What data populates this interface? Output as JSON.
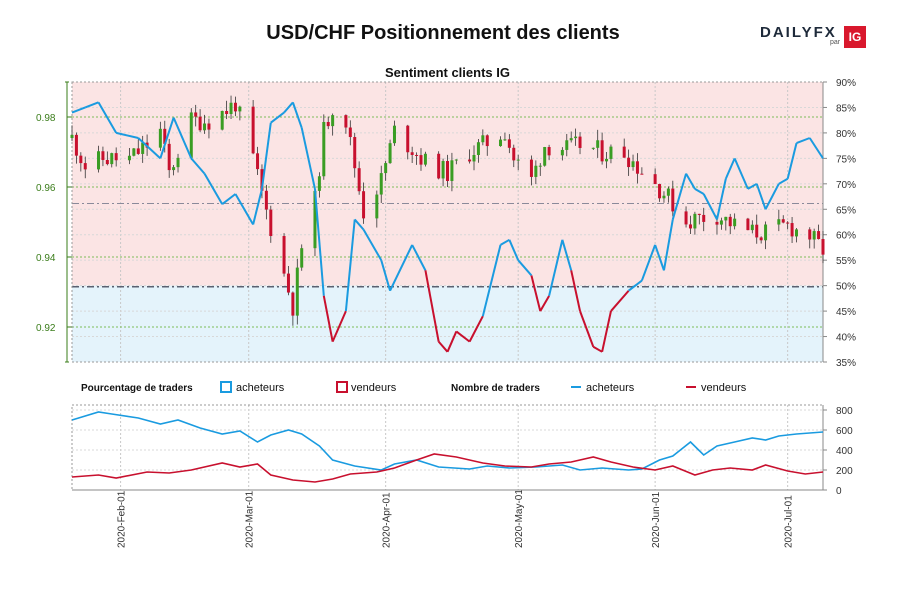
{
  "header": {
    "title": "USD/CHF Positionnement des clients",
    "logo_text": "DAILY",
    "logo_fx": "FX",
    "logo_par": "par",
    "logo_ig": "IG"
  },
  "legend": {
    "pct_label": "Pourcentage de traders",
    "pct_buy": "acheteurs",
    "pct_sell": "vendeurs",
    "count_label": "Nombre de traders",
    "count_buy": "acheteurs",
    "count_sell": "vendeurs"
  },
  "colors": {
    "buyer": "#1a9be0",
    "seller": "#c8102e",
    "up": "#3a9d23",
    "down": "#c8102e",
    "buy_fill": "#e4f3fb",
    "sell_fill": "#fbe4e4",
    "axis_green": "#3a7d1a"
  },
  "chart_data": [
    {
      "type": "candlestick+line",
      "title": "Sentiment clients IG",
      "left_axis": {
        "ticks": [
          "0.92",
          "0.94",
          "0.96",
          "0.98"
        ],
        "values": [
          0.92,
          0.94,
          0.96,
          0.98
        ],
        "range": [
          0.91,
          0.99
        ]
      },
      "right_axis": {
        "ticks": [
          "35%",
          "40%",
          "45%",
          "50%",
          "55%",
          "60%",
          "65%",
          "70%",
          "75%",
          "80%",
          "85%",
          "90%"
        ],
        "range": [
          35,
          90
        ]
      },
      "reference_lines": {
        "price_levels": [
          0.9553,
          0.9315
        ]
      },
      "date_range": [
        "2020-01-21",
        "2020-07-09"
      ],
      "price_path": [
        [
          "2020-01-21",
          0.974
        ],
        [
          "2020-01-24",
          0.966
        ],
        [
          "2020-01-28",
          0.968
        ],
        [
          "2020-02-03",
          0.968
        ],
        [
          "2020-02-07",
          0.972
        ],
        [
          "2020-02-10",
          0.976
        ],
        [
          "2020-02-12",
          0.964
        ],
        [
          "2020-02-17",
          0.979
        ],
        [
          "2020-02-21",
          0.979
        ],
        [
          "2020-02-25",
          0.982
        ],
        [
          "2020-02-27",
          0.984
        ],
        [
          "2020-03-02",
          0.968
        ],
        [
          "2020-03-05",
          0.953
        ],
        [
          "2020-03-09",
          0.935
        ],
        [
          "2020-03-11",
          0.926
        ],
        [
          "2020-03-13",
          0.943
        ],
        [
          "2020-03-16",
          0.956
        ],
        [
          "2020-03-18",
          0.976
        ],
        [
          "2020-03-20",
          0.983
        ],
        [
          "2020-03-23",
          0.979
        ],
        [
          "2020-03-25",
          0.966
        ],
        [
          "2020-03-27",
          0.953
        ],
        [
          "2020-03-31",
          0.962
        ],
        [
          "2020-04-03",
          0.976
        ],
        [
          "2020-04-07",
          0.971
        ],
        [
          "2020-04-10",
          0.967
        ],
        [
          "2020-04-15",
          0.964
        ],
        [
          "2020-04-20",
          0.97
        ],
        [
          "2020-04-23",
          0.972
        ],
        [
          "2020-04-28",
          0.976
        ],
        [
          "2020-04-30",
          0.968
        ],
        [
          "2020-05-04",
          0.962
        ],
        [
          "2020-05-07",
          0.972
        ],
        [
          "2020-05-12",
          0.971
        ],
        [
          "2020-05-15",
          0.972
        ],
        [
          "2020-05-20",
          0.97
        ],
        [
          "2020-05-25",
          0.97
        ],
        [
          "2020-05-28",
          0.966
        ],
        [
          "2020-06-01",
          0.961
        ],
        [
          "2020-06-04",
          0.957
        ],
        [
          "2020-06-08",
          0.95
        ],
        [
          "2020-06-10",
          0.951
        ],
        [
          "2020-06-15",
          0.952
        ],
        [
          "2020-06-19",
          0.949
        ],
        [
          "2020-06-23",
          0.947
        ],
        [
          "2020-06-26",
          0.947
        ],
        [
          "2020-07-01",
          0.949
        ],
        [
          "2020-07-06",
          0.946
        ],
        [
          "2020-07-09",
          0.942
        ]
      ],
      "net_long_pct_path": [
        [
          "2020-01-21",
          84
        ],
        [
          "2020-01-24",
          85
        ],
        [
          "2020-01-27",
          86
        ],
        [
          "2020-01-31",
          80
        ],
        [
          "2020-02-05",
          79
        ],
        [
          "2020-02-10",
          75
        ],
        [
          "2020-02-13",
          83
        ],
        [
          "2020-02-17",
          75
        ],
        [
          "2020-02-20",
          72
        ],
        [
          "2020-02-24",
          66
        ],
        [
          "2020-02-27",
          68
        ],
        [
          "2020-03-02",
          62
        ],
        [
          "2020-03-04",
          69
        ],
        [
          "2020-03-06",
          82
        ],
        [
          "2020-03-09",
          84
        ],
        [
          "2020-03-11",
          86
        ],
        [
          "2020-03-13",
          81
        ],
        [
          "2020-03-16",
          69
        ],
        [
          "2020-03-18",
          48
        ],
        [
          "2020-03-20",
          39
        ],
        [
          "2020-03-23",
          45
        ],
        [
          "2020-03-25",
          63
        ],
        [
          "2020-03-27",
          61
        ],
        [
          "2020-03-31",
          55
        ],
        [
          "2020-04-02",
          49
        ],
        [
          "2020-04-07",
          58
        ],
        [
          "2020-04-10",
          53
        ],
        [
          "2020-04-13",
          39
        ],
        [
          "2020-04-15",
          37
        ],
        [
          "2020-04-17",
          41
        ],
        [
          "2020-04-20",
          39
        ],
        [
          "2020-04-23",
          44
        ],
        [
          "2020-04-27",
          58
        ],
        [
          "2020-04-29",
          59
        ],
        [
          "2020-05-01",
          55
        ],
        [
          "2020-05-04",
          52
        ],
        [
          "2020-05-06",
          45
        ],
        [
          "2020-05-08",
          48
        ],
        [
          "2020-05-11",
          59
        ],
        [
          "2020-05-13",
          53
        ],
        [
          "2020-05-15",
          45
        ],
        [
          "2020-05-18",
          38
        ],
        [
          "2020-05-20",
          37
        ],
        [
          "2020-05-22",
          45
        ],
        [
          "2020-05-26",
          49
        ],
        [
          "2020-05-29",
          51
        ],
        [
          "2020-06-01",
          58
        ],
        [
          "2020-06-03",
          53
        ],
        [
          "2020-06-05",
          63
        ],
        [
          "2020-06-08",
          72
        ],
        [
          "2020-06-10",
          69
        ],
        [
          "2020-06-12",
          68
        ],
        [
          "2020-06-15",
          63
        ],
        [
          "2020-06-17",
          71
        ],
        [
          "2020-06-19",
          75
        ],
        [
          "2020-06-22",
          69
        ],
        [
          "2020-06-24",
          70
        ],
        [
          "2020-06-26",
          65
        ],
        [
          "2020-06-29",
          70
        ],
        [
          "2020-07-01",
          71
        ],
        [
          "2020-07-03",
          78
        ],
        [
          "2020-07-06",
          79
        ],
        [
          "2020-07-09",
          75
        ]
      ]
    },
    {
      "type": "line",
      "title": "Nombre de traders",
      "y_axis": {
        "ticks": [
          "0",
          "200",
          "400",
          "600",
          "800"
        ],
        "range": [
          0,
          850
        ]
      },
      "x_ticks": [
        "2020-Feb-01",
        "2020-Mar-01",
        "2020-Apr-01",
        "2020-May-01",
        "2020-Jun-01",
        "2020-Jul-01"
      ],
      "series": [
        {
          "name": "acheteurs",
          "points": [
            [
              "2020-01-21",
              700
            ],
            [
              "2020-01-27",
              780
            ],
            [
              "2020-01-30",
              760
            ],
            [
              "2020-02-05",
              720
            ],
            [
              "2020-02-10",
              660
            ],
            [
              "2020-02-14",
              700
            ],
            [
              "2020-02-19",
              620
            ],
            [
              "2020-02-24",
              560
            ],
            [
              "2020-02-28",
              590
            ],
            [
              "2020-03-03",
              480
            ],
            [
              "2020-03-06",
              550
            ],
            [
              "2020-03-10",
              600
            ],
            [
              "2020-03-13",
              560
            ],
            [
              "2020-03-17",
              440
            ],
            [
              "2020-03-20",
              300
            ],
            [
              "2020-03-25",
              240
            ],
            [
              "2020-03-31",
              200
            ],
            [
              "2020-04-03",
              260
            ],
            [
              "2020-04-08",
              300
            ],
            [
              "2020-04-13",
              230
            ],
            [
              "2020-04-20",
              210
            ],
            [
              "2020-04-24",
              240
            ],
            [
              "2020-04-29",
              220
            ],
            [
              "2020-05-05",
              230
            ],
            [
              "2020-05-11",
              250
            ],
            [
              "2020-05-15",
              200
            ],
            [
              "2020-05-20",
              220
            ],
            [
              "2020-05-26",
              200
            ],
            [
              "2020-05-29",
              210
            ],
            [
              "2020-06-02",
              300
            ],
            [
              "2020-06-05",
              340
            ],
            [
              "2020-06-09",
              480
            ],
            [
              "2020-06-12",
              350
            ],
            [
              "2020-06-15",
              440
            ],
            [
              "2020-06-19",
              480
            ],
            [
              "2020-06-23",
              520
            ],
            [
              "2020-06-26",
              500
            ],
            [
              "2020-06-29",
              540
            ],
            [
              "2020-07-03",
              560
            ],
            [
              "2020-07-09",
              580
            ]
          ]
        },
        {
          "name": "vendeurs",
          "points": [
            [
              "2020-01-21",
              130
            ],
            [
              "2020-01-27",
              150
            ],
            [
              "2020-01-31",
              120
            ],
            [
              "2020-02-07",
              180
            ],
            [
              "2020-02-12",
              170
            ],
            [
              "2020-02-17",
              200
            ],
            [
              "2020-02-24",
              270
            ],
            [
              "2020-02-28",
              230
            ],
            [
              "2020-03-03",
              260
            ],
            [
              "2020-03-06",
              150
            ],
            [
              "2020-03-11",
              100
            ],
            [
              "2020-03-16",
              80
            ],
            [
              "2020-03-20",
              110
            ],
            [
              "2020-03-24",
              160
            ],
            [
              "2020-03-30",
              180
            ],
            [
              "2020-04-03",
              220
            ],
            [
              "2020-04-08",
              300
            ],
            [
              "2020-04-12",
              360
            ],
            [
              "2020-04-17",
              330
            ],
            [
              "2020-04-23",
              270
            ],
            [
              "2020-04-28",
              240
            ],
            [
              "2020-05-04",
              230
            ],
            [
              "2020-05-08",
              260
            ],
            [
              "2020-05-13",
              280
            ],
            [
              "2020-05-18",
              330
            ],
            [
              "2020-05-22",
              280
            ],
            [
              "2020-05-27",
              230
            ],
            [
              "2020-06-01",
              200
            ],
            [
              "2020-06-05",
              240
            ],
            [
              "2020-06-10",
              150
            ],
            [
              "2020-06-14",
              200
            ],
            [
              "2020-06-18",
              220
            ],
            [
              "2020-06-23",
              200
            ],
            [
              "2020-06-26",
              250
            ],
            [
              "2020-07-01",
              190
            ],
            [
              "2020-07-05",
              160
            ],
            [
              "2020-07-09",
              180
            ]
          ]
        }
      ]
    }
  ]
}
